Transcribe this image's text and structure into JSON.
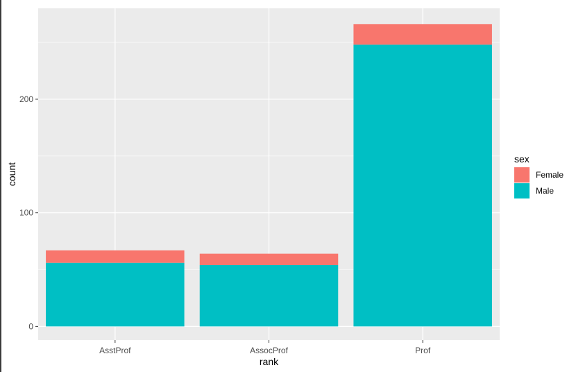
{
  "chart_data": {
    "type": "bar",
    "stacked": true,
    "categories": [
      "AsstProf",
      "AssocProf",
      "Prof"
    ],
    "series": [
      {
        "name": "Male",
        "values": [
          56,
          54,
          248
        ],
        "color": "#00BFC4"
      },
      {
        "name": "Female",
        "values": [
          11,
          10,
          18
        ],
        "color": "#F8766D"
      }
    ],
    "xlabel": "rank",
    "ylabel": "count",
    "ylim": [
      -12,
      280
    ],
    "yticks": [
      0,
      100,
      200
    ],
    "yticks_labels": [
      "0",
      "100",
      "200"
    ],
    "grid": true,
    "panel_color": "#EBEBEB",
    "legend": {
      "title": "sex",
      "position": "right",
      "entries": [
        {
          "label": "Female",
          "color": "#F8766D"
        },
        {
          "label": "Male",
          "color": "#00BFC4"
        }
      ]
    }
  }
}
